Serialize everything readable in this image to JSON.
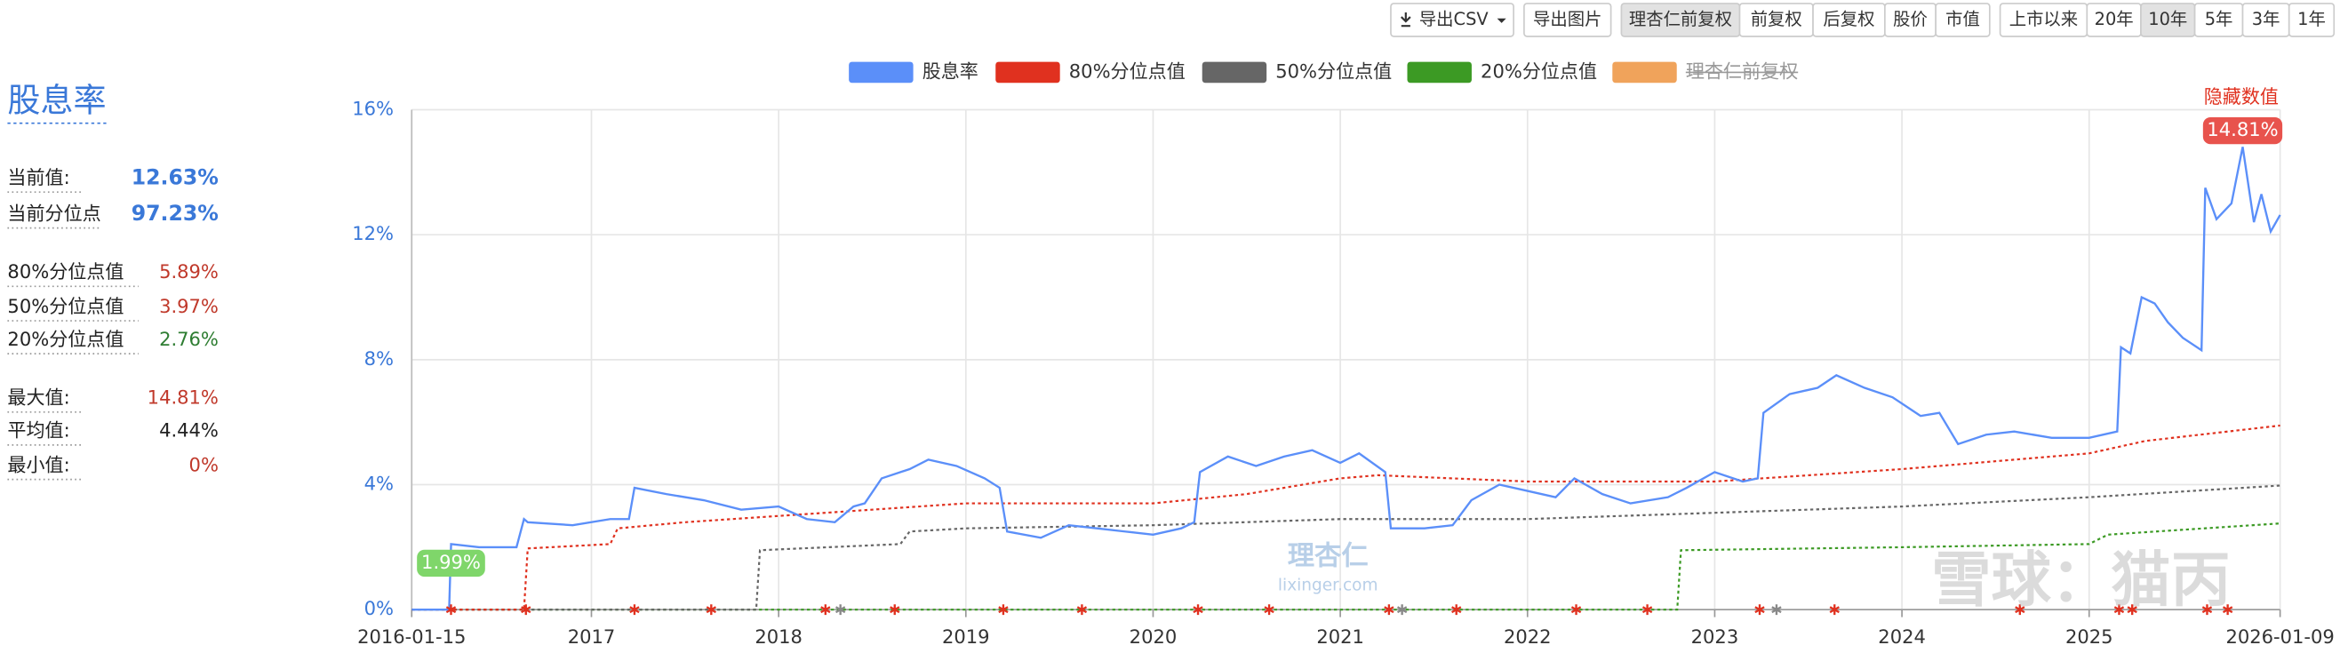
{
  "toolbar": {
    "groups": [
      [
        "导出CSV"
      ],
      [
        "导出图片"
      ],
      [
        "理杏仁前复权",
        "前复权",
        "后复权",
        "股价",
        "市值"
      ],
      [
        "上市以来",
        "20年",
        "10年",
        "5年",
        "3年",
        "1年"
      ]
    ],
    "active": [
      "理杏仁前复权",
      "10年"
    ]
  },
  "panel": {
    "title": "股息率",
    "rows": [
      {
        "label": "当前值:",
        "value": "12.63%",
        "color": "#3a78d8"
      },
      {
        "label": "当前分位点",
        "value": "97.23%",
        "color": "#3a78d8"
      },
      {
        "label": "80%分位点值",
        "value": "5.89%",
        "color": "#c0392b"
      },
      {
        "label": "50%分位点值",
        "value": "3.97%",
        "color": "#c0392b"
      },
      {
        "label": "20%分位点值",
        "value": "2.76%",
        "color": "#2e7d32"
      },
      {
        "label": "最大值:",
        "value": "14.81%",
        "color": "#c0392b"
      },
      {
        "label": "平均值:",
        "value": "4.44%",
        "color": "#222222"
      },
      {
        "label": "最小值:",
        "value": "0%",
        "color": "#c0392b"
      }
    ]
  },
  "watermarks": {
    "logo": "理杏仁",
    "site": "lixinger.com",
    "author": "雪球：猫丙"
  },
  "chart_data": {
    "type": "line",
    "xlim": [
      2016.04,
      2026.02
    ],
    "xticks": [
      {
        "value": 2016.04,
        "label": "2016-01-15"
      },
      2017,
      2018,
      2019,
      2020,
      2021,
      2022,
      2023,
      2024,
      2025,
      {
        "value": 2026.02,
        "label": "2026-01-09"
      }
    ],
    "ylim": [
      0,
      16
    ],
    "yticks": [
      {
        "value": 0,
        "label": "0%"
      },
      {
        "value": 4,
        "label": "4%"
      },
      {
        "value": 8,
        "label": "8%"
      },
      {
        "value": 12,
        "label": "12%"
      },
      {
        "value": 16,
        "label": "16%"
      }
    ],
    "grid": true,
    "hide_values_label": "隐藏数值",
    "point_labels": [
      {
        "x": 2025.82,
        "value": 14.81,
        "label": "14.81%",
        "color": "#e8534d"
      },
      {
        "x": 2016.25,
        "value": 1.99,
        "label": "1.99%",
        "color": "#7fd66a"
      }
    ],
    "series": [
      {
        "name": "股息率",
        "color": "#5b8ff9",
        "style": "solid",
        "x": [
          2016.04,
          2016.24,
          2016.25,
          2016.4,
          2016.6,
          2016.64,
          2016.66,
          2016.9,
          2017.1,
          2017.2,
          2017.23,
          2017.4,
          2017.6,
          2017.8,
          2018.0,
          2018.15,
          2018.3,
          2018.4,
          2018.46,
          2018.55,
          2018.7,
          2018.8,
          2018.95,
          2019.1,
          2019.18,
          2019.22,
          2019.4,
          2019.55,
          2019.7,
          2019.85,
          2020.0,
          2020.15,
          2020.22,
          2020.25,
          2020.4,
          2020.55,
          2020.7,
          2020.85,
          2021.0,
          2021.1,
          2021.24,
          2021.27,
          2021.45,
          2021.6,
          2021.7,
          2021.85,
          2022.0,
          2022.15,
          2022.25,
          2022.4,
          2022.55,
          2022.75,
          2022.85,
          2023.0,
          2023.15,
          2023.23,
          2023.26,
          2023.4,
          2023.55,
          2023.65,
          2023.8,
          2023.95,
          2024.1,
          2024.2,
          2024.3,
          2024.45,
          2024.6,
          2024.8,
          2025.0,
          2025.15,
          2025.17,
          2025.22,
          2025.28,
          2025.35,
          2025.42,
          2025.5,
          2025.6,
          2025.62,
          2025.68,
          2025.76,
          2025.82,
          2025.88,
          2025.92,
          2025.97,
          2026.02
        ],
        "values": [
          0,
          0,
          2.1,
          2.0,
          2.0,
          2.9,
          2.8,
          2.7,
          2.9,
          2.9,
          3.9,
          3.7,
          3.5,
          3.2,
          3.3,
          2.9,
          2.8,
          3.3,
          3.4,
          4.2,
          4.5,
          4.8,
          4.6,
          4.2,
          3.9,
          2.5,
          2.3,
          2.7,
          2.6,
          2.5,
          2.4,
          2.6,
          2.8,
          4.4,
          4.9,
          4.6,
          4.9,
          5.1,
          4.7,
          5.0,
          4.4,
          2.6,
          2.6,
          2.7,
          3.5,
          4.0,
          3.8,
          3.6,
          4.2,
          3.7,
          3.4,
          3.6,
          3.9,
          4.4,
          4.1,
          4.2,
          6.3,
          6.9,
          7.1,
          7.5,
          7.1,
          6.8,
          6.2,
          6.3,
          5.3,
          5.6,
          5.7,
          5.5,
          5.5,
          5.7,
          8.4,
          8.2,
          10.0,
          9.8,
          9.2,
          8.7,
          8.3,
          13.5,
          12.5,
          13.0,
          14.81,
          12.4,
          13.3,
          12.1,
          12.63
        ]
      },
      {
        "name": "80%分位点值",
        "color": "#e0311f",
        "style": "dotted",
        "x": [
          2016.04,
          2016.64,
          2016.66,
          2017.1,
          2017.14,
          2017.5,
          2018.0,
          2019.0,
          2020.0,
          2020.5,
          2021.0,
          2021.2,
          2022.0,
          2023.0,
          2024.0,
          2025.0,
          2025.3,
          2026.02
        ],
        "values": [
          0,
          0,
          1.96,
          2.1,
          2.6,
          2.8,
          3.0,
          3.4,
          3.4,
          3.7,
          4.2,
          4.3,
          4.1,
          4.1,
          4.5,
          5.0,
          5.4,
          5.89
        ]
      },
      {
        "name": "50%分位点值",
        "color": "#666666",
        "style": "dotted",
        "x": [
          2016.04,
          2017.88,
          2017.9,
          2018.65,
          2018.7,
          2019.0,
          2020.0,
          2021.0,
          2022.0,
          2023.0,
          2024.0,
          2025.0,
          2026.02
        ],
        "values": [
          0,
          0,
          1.9,
          2.1,
          2.5,
          2.6,
          2.7,
          2.9,
          2.9,
          3.1,
          3.3,
          3.6,
          3.97
        ]
      },
      {
        "name": "20%分位点值",
        "color": "#3c9a24",
        "style": "dotted",
        "x": [
          2016.04,
          2022.8,
          2022.82,
          2024.0,
          2025.0,
          2025.1,
          2026.02
        ],
        "values": [
          0,
          0,
          1.9,
          2.0,
          2.1,
          2.4,
          2.76
        ]
      },
      {
        "name": "理杏仁前复权",
        "color": "#f0a35b",
        "style": "solid",
        "hidden": true,
        "x": [],
        "values": []
      }
    ],
    "event_markers": [
      {
        "color": "#e0311f",
        "x": [
          2016.25,
          2016.65,
          2017.23,
          2017.64,
          2018.25,
          2018.62,
          2019.2,
          2019.62,
          2020.24,
          2020.62,
          2021.26,
          2021.62,
          2022.26,
          2022.64,
          2023.24,
          2023.64,
          2024.63,
          2025.16,
          2025.23,
          2025.63,
          2025.74
        ]
      },
      {
        "color": "#888888",
        "x": [
          2018.33,
          2021.33,
          2023.33
        ]
      }
    ]
  }
}
